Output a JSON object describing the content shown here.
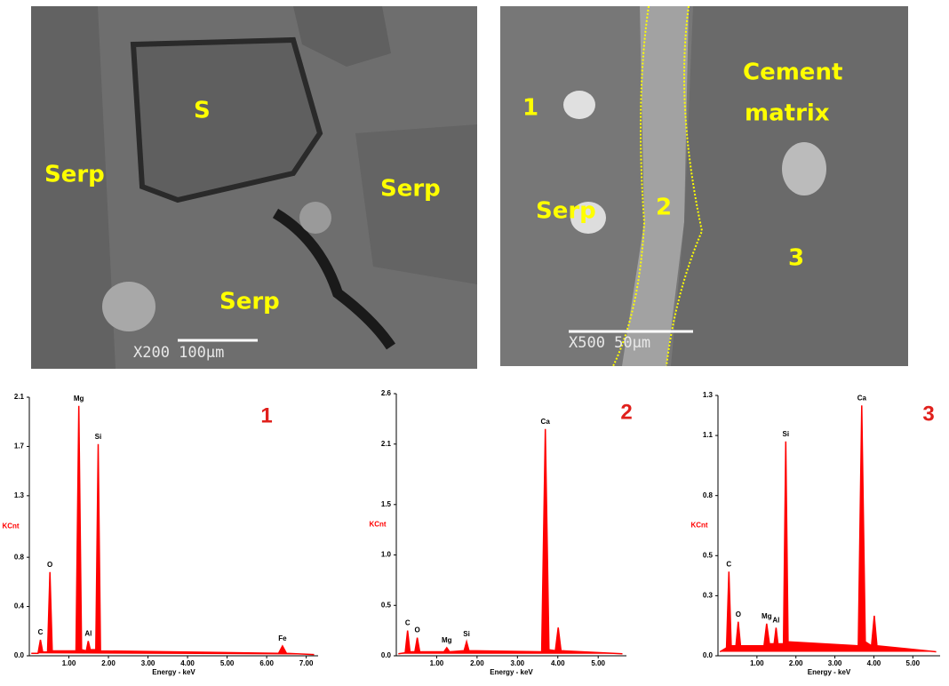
{
  "micrographs": [
    {
      "labels": [
        "S",
        "Serp",
        "Serp",
        "Serp"
      ],
      "scale": "X200 100µm"
    },
    {
      "labels": [
        "1",
        "Serp",
        "2",
        "Cement",
        "matrix",
        "3"
      ],
      "scale": "X500 50µm"
    }
  ],
  "chart_data": [
    {
      "type": "spectrum",
      "title": "1",
      "x_label": "Energy - keV",
      "y_label": "KCnt",
      "color": "#ff0000",
      "x": [
        0.05,
        0.22,
        0.28,
        0.34,
        0.46,
        0.52,
        0.58,
        1.18,
        1.25,
        1.32,
        1.44,
        1.49,
        1.54,
        1.68,
        1.74,
        1.8,
        6.3,
        6.4,
        6.5,
        7.2
      ],
      "values": [
        0.02,
        0.02,
        0.13,
        0.03,
        0.03,
        0.68,
        0.04,
        0.04,
        2.03,
        0.05,
        0.04,
        0.12,
        0.05,
        0.05,
        1.72,
        0.04,
        0.02,
        0.08,
        0.02,
        0.01
      ],
      "annotations": [
        {
          "text": "C",
          "x": 0.28,
          "y": 0.13
        },
        {
          "text": "O",
          "x": 0.52,
          "y": 0.68
        },
        {
          "text": "Mg",
          "x": 1.25,
          "y": 2.03
        },
        {
          "text": "Al",
          "x": 1.49,
          "y": 0.12
        },
        {
          "text": "Si",
          "x": 1.74,
          "y": 1.72
        },
        {
          "text": "Fe",
          "x": 6.4,
          "y": 0.08
        }
      ],
      "xlim": [
        0,
        7.3
      ],
      "ylim": [
        0,
        2.1
      ],
      "xticks": [
        {
          "value": 1,
          "label": "1.00"
        },
        {
          "value": 2,
          "label": "2.00"
        },
        {
          "value": 3,
          "label": "3.00"
        },
        {
          "value": 4,
          "label": "4.00"
        },
        {
          "value": 5,
          "label": "5.00"
        },
        {
          "value": 6,
          "label": "6.00"
        },
        {
          "value": 7,
          "label": "7.00"
        }
      ],
      "yticks": [
        {
          "value": 0,
          "label": "0.0"
        },
        0.4,
        0.8,
        1.3,
        1.7,
        2.1
      ]
    },
    {
      "type": "spectrum",
      "title": "2",
      "x_label": "Energy - keV",
      "y_label": "KCnt",
      "color": "#ff0000",
      "x": [
        0.05,
        0.22,
        0.28,
        0.34,
        0.46,
        0.52,
        0.58,
        1.18,
        1.25,
        1.32,
        1.68,
        1.74,
        1.8,
        3.6,
        3.69,
        3.78,
        3.94,
        4.01,
        4.08,
        5.6
      ],
      "values": [
        0.02,
        0.03,
        0.25,
        0.04,
        0.04,
        0.18,
        0.04,
        0.04,
        0.08,
        0.04,
        0.05,
        0.14,
        0.05,
        0.04,
        2.25,
        0.06,
        0.05,
        0.28,
        0.05,
        0.02
      ],
      "annotations": [
        {
          "text": "C",
          "x": 0.28,
          "y": 0.25
        },
        {
          "text": "O",
          "x": 0.52,
          "y": 0.18
        },
        {
          "text": "Mg",
          "x": 1.25,
          "y": 0.08
        },
        {
          "text": "Si",
          "x": 1.74,
          "y": 0.14
        },
        {
          "text": "Ca",
          "x": 3.69,
          "y": 2.25
        }
      ],
      "xlim": [
        0,
        5.7
      ],
      "ylim": [
        0,
        2.6
      ],
      "xticks": [
        {
          "value": 1,
          "label": "1.00"
        },
        {
          "value": 2,
          "label": "2.00"
        },
        {
          "value": 3,
          "label": "3.00"
        },
        {
          "value": 4,
          "label": "4.00"
        },
        {
          "value": 5,
          "label": "5.00"
        }
      ],
      "yticks": [
        {
          "value": 0,
          "label": "0.0"
        },
        0.5,
        {
          "value": 1,
          "label": "1.0"
        },
        1.5,
        2.1,
        2.6
      ]
    },
    {
      "type": "spectrum",
      "title": "3",
      "x_label": "Energy - keV",
      "y_label": "KCnt",
      "color": "#ff0000",
      "x": [
        0.05,
        0.22,
        0.28,
        0.34,
        0.46,
        0.52,
        0.58,
        1.18,
        1.25,
        1.32,
        1.44,
        1.49,
        1.54,
        1.68,
        1.74,
        1.8,
        3.6,
        3.69,
        3.78,
        3.94,
        4.01,
        4.08,
        5.6
      ],
      "values": [
        0.02,
        0.04,
        0.42,
        0.05,
        0.05,
        0.17,
        0.05,
        0.05,
        0.16,
        0.06,
        0.06,
        0.14,
        0.06,
        0.06,
        1.07,
        0.07,
        0.05,
        1.25,
        0.07,
        0.05,
        0.2,
        0.05,
        0.02
      ],
      "annotations": [
        {
          "text": "C",
          "x": 0.28,
          "y": 0.42
        },
        {
          "text": "O",
          "x": 0.52,
          "y": 0.17
        },
        {
          "text": "Mg",
          "x": 1.25,
          "y": 0.16
        },
        {
          "text": "Al",
          "x": 1.49,
          "y": 0.14
        },
        {
          "text": "Si",
          "x": 1.74,
          "y": 1.07
        },
        {
          "text": "Ca",
          "x": 3.69,
          "y": 1.25
        }
      ],
      "xlim": [
        0,
        5.7
      ],
      "ylim": [
        0,
        1.3
      ],
      "xticks": [
        {
          "value": 1,
          "label": "1.00"
        },
        {
          "value": 2,
          "label": "2.00"
        },
        {
          "value": 3,
          "label": "3.00"
        },
        {
          "value": 4,
          "label": "4.00"
        },
        {
          "value": 5,
          "label": "5.00"
        }
      ],
      "yticks": [
        {
          "value": 0,
          "label": "0.0"
        },
        0.3,
        0.5,
        0.8,
        1.1,
        1.3
      ]
    }
  ]
}
